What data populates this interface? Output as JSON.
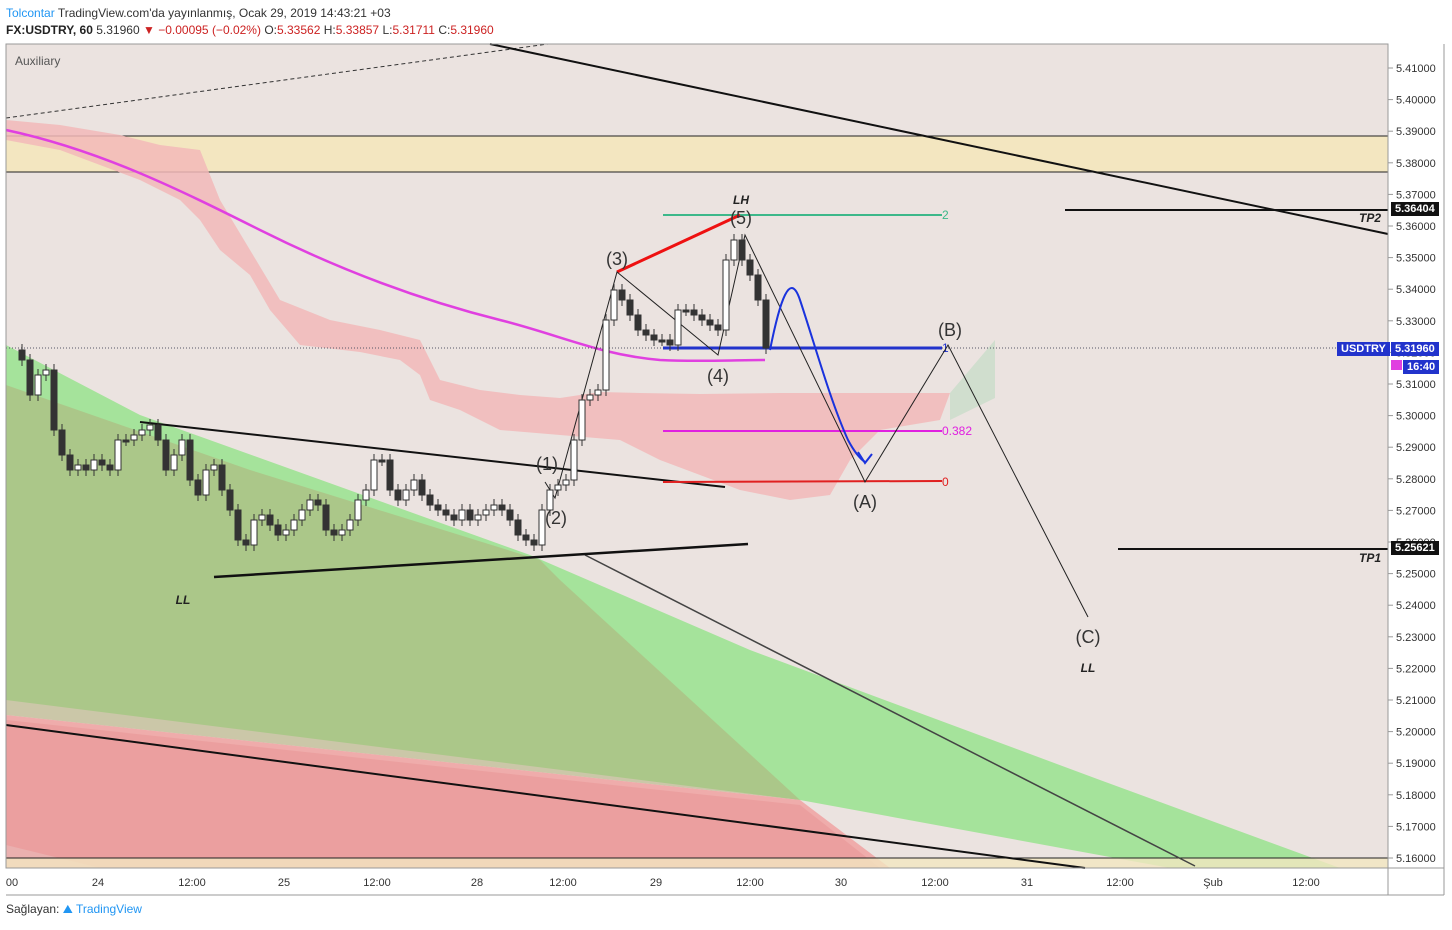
{
  "header": {
    "author": "Tolcontar",
    "published": "TradingView.com'da yayınlanmış, Ocak 29, 2019 14:43:21 +03",
    "symbol": "FX:USDTRY, 60",
    "last": "5.31960",
    "change": "−0.00095 (−0.02%)",
    "o_label": "O:",
    "o_val": "5.33562",
    "h_label": "H:",
    "h_val": "5.33857",
    "l_label": "L:",
    "l_val": "5.31711",
    "c_label": "C:",
    "c_val": "5.31960"
  },
  "pane_label": "Auxiliary",
  "footer": {
    "prefix": "Sağlayan:",
    "brand": "TradingView"
  },
  "price_tags": {
    "usdtry_label": "USDTRY",
    "usdtry_price": "5.31960",
    "countdown": "16:40",
    "tp2_price": "5.36404",
    "tp1_price": "5.25621"
  },
  "colors": {
    "up_candle": "#ffffff",
    "down_candle": "#333333",
    "ema": "#e040e0",
    "fib_2": "#3cb88a",
    "fib_0382": "#e020e0",
    "fib_0": "#e02020",
    "fib_1": "#2233cc",
    "projection": "#1a33dd",
    "cloud_red": "#f2b8b8",
    "zone": "#f3e6c0"
  },
  "chart_data": {
    "type": "candlestick",
    "y_axis": {
      "ticks": [
        "5.41000",
        "5.40000",
        "5.39000",
        "5.38000",
        "5.37000",
        "5.36000",
        "5.35000",
        "5.34000",
        "5.33000",
        "5.32000",
        "5.31000",
        "5.30000",
        "5.29000",
        "5.28000",
        "5.27000",
        "5.26000",
        "5.25000",
        "5.24000",
        "5.23000",
        "5.22000",
        "5.21000",
        "5.20000",
        "5.19000",
        "5.18000",
        "5.17000",
        "5.16000"
      ],
      "range": [
        5.1555,
        5.4155
      ]
    },
    "x_axis": {
      "ticks": [
        "00",
        "24",
        "12:00",
        "25",
        "12:00",
        "28",
        "12:00",
        "29",
        "12:00",
        "30",
        "12:00",
        "31",
        "12:00",
        "Şub",
        "12:00"
      ]
    },
    "annotations": {
      "wave_labels": [
        "(1)",
        "(2)",
        "(3)",
        "(4)",
        "(5)",
        "(A)",
        "(B)",
        "(C)"
      ],
      "structure_labels": [
        "LH",
        "LL",
        "LL"
      ],
      "targets": [
        "TP2",
        "TP1"
      ],
      "fib_levels": [
        {
          "label": "2",
          "value": 5.3625
        },
        {
          "label": "0.382",
          "value": 5.2945
        },
        {
          "label": "0",
          "value": 5.2777
        },
        {
          "label": "1",
          "value": 5.3195
        }
      ]
    },
    "grid": false,
    "legend": "none"
  }
}
